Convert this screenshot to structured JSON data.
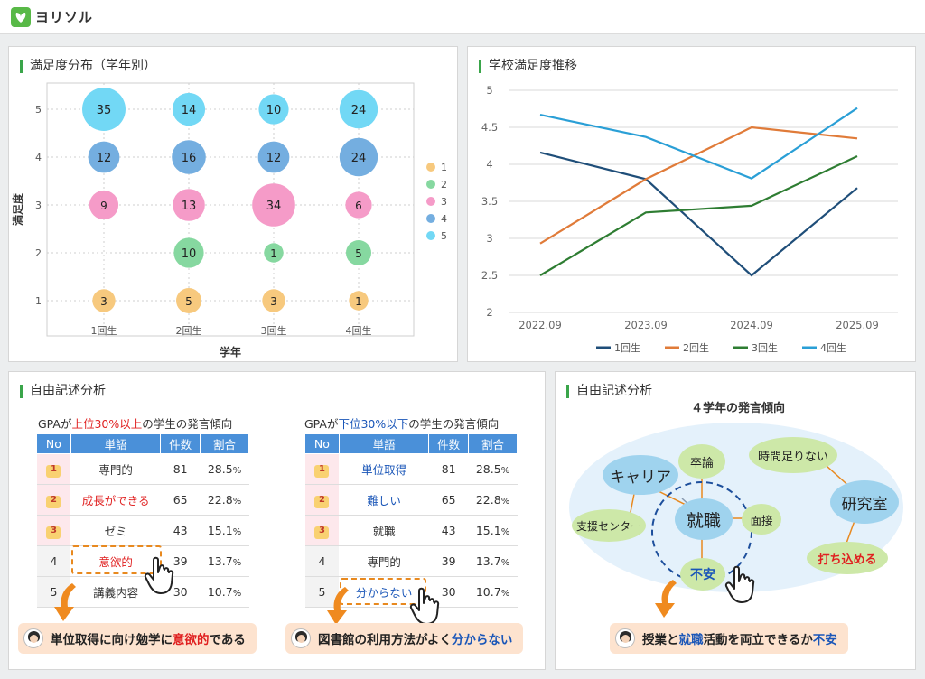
{
  "app": {
    "name": "ヨリソル",
    "accent": "#58b947"
  },
  "bubble_chart": {
    "title": "満足度分布（学年別）",
    "chart_data": {
      "type": "scatter",
      "xlabel": "学年",
      "ylabel": "満足度",
      "categories": [
        "1回生",
        "2回生",
        "3回生",
        "4回生"
      ],
      "yticks": [
        "1",
        "2",
        "3",
        "4",
        "5"
      ],
      "legend": [
        "1",
        "2",
        "3",
        "4",
        "5"
      ],
      "colors": {
        "1": "#f7c97e",
        "2": "#86d8a0",
        "3": "#f59bc8",
        "4": "#74aee0",
        "5": "#72d8f5"
      },
      "points": [
        {
          "x": "1回生",
          "y": 5,
          "value": 35
        },
        {
          "x": "2回生",
          "y": 5,
          "value": 14
        },
        {
          "x": "3回生",
          "y": 5,
          "value": 10
        },
        {
          "x": "4回生",
          "y": 5,
          "value": 24
        },
        {
          "x": "1回生",
          "y": 4,
          "value": 12
        },
        {
          "x": "2回生",
          "y": 4,
          "value": 16
        },
        {
          "x": "3回生",
          "y": 4,
          "value": 12
        },
        {
          "x": "4回生",
          "y": 4,
          "value": 24
        },
        {
          "x": "1回生",
          "y": 3,
          "value": 9
        },
        {
          "x": "2回生",
          "y": 3,
          "value": 13
        },
        {
          "x": "3回生",
          "y": 3,
          "value": 34
        },
        {
          "x": "4回生",
          "y": 3,
          "value": 6
        },
        {
          "x": "2回生",
          "y": 2,
          "value": 10
        },
        {
          "x": "3回生",
          "y": 2,
          "value": 1
        },
        {
          "x": "4回生",
          "y": 2,
          "value": 5
        },
        {
          "x": "1回生",
          "y": 1,
          "value": 3
        },
        {
          "x": "2回生",
          "y": 1,
          "value": 5
        },
        {
          "x": "3回生",
          "y": 1,
          "value": 3
        },
        {
          "x": "4回生",
          "y": 1,
          "value": 1
        }
      ]
    }
  },
  "line_chart": {
    "title": "学校満足度推移",
    "chart_data": {
      "type": "line",
      "x": [
        "2022.09",
        "2023.09",
        "2024.09",
        "2025.09"
      ],
      "yticks": [
        "2",
        "2.5",
        "3",
        "3.5",
        "4",
        "4.5",
        "5"
      ],
      "ylim": [
        2,
        5
      ],
      "grid": true,
      "legend_position": "bottom",
      "series": [
        {
          "name": "1回生",
          "color": "#1f4e79",
          "values": [
            4.16,
            3.8,
            2.5,
            3.68
          ]
        },
        {
          "name": "2回生",
          "color": "#e07b39",
          "values": [
            2.93,
            3.8,
            4.5,
            4.35
          ]
        },
        {
          "name": "3回生",
          "color": "#2e7d32",
          "values": [
            2.5,
            3.35,
            3.44,
            4.11
          ]
        },
        {
          "name": "4回生",
          "color": "#2a9fd6",
          "values": [
            4.67,
            4.37,
            3.81,
            4.76
          ]
        }
      ]
    }
  },
  "free_text": {
    "title": "自由記述分析",
    "headers": [
      "No",
      "単語",
      "件数",
      "割合"
    ],
    "top": {
      "head_pre": "GPAが",
      "head_hl": "上位30%以上",
      "head_post": "の学生の発言傾向",
      "rows": [
        {
          "no": "1",
          "word": "専門的",
          "count": "81",
          "pct": "28.5",
          "unit": "%"
        },
        {
          "no": "2",
          "word": "成長ができる",
          "count": "65",
          "pct": "22.8",
          "unit": "%"
        },
        {
          "no": "3",
          "word": "ゼミ",
          "count": "43",
          "pct": "15.1",
          "unit": "%"
        },
        {
          "no": "4",
          "word": "意欲的",
          "count": "39",
          "pct": "13.7",
          "unit": "%"
        },
        {
          "no": "5",
          "word": "講義内容",
          "count": "30",
          "pct": "10.7",
          "unit": "%"
        }
      ],
      "quote_pre": "単位取得に向け勉学に",
      "quote_hl": "意欲的",
      "quote_post": "である"
    },
    "bottom": {
      "head_pre": "GPAが",
      "head_hl": "下位30%以下",
      "head_post": "の学生の発言傾向",
      "rows": [
        {
          "no": "1",
          "word": "単位取得",
          "count": "81",
          "pct": "28.5",
          "unit": "%"
        },
        {
          "no": "2",
          "word": "難しい",
          "count": "65",
          "pct": "22.8",
          "unit": "%"
        },
        {
          "no": "3",
          "word": "就職",
          "count": "43",
          "pct": "15.1",
          "unit": "%"
        },
        {
          "no": "4",
          "word": "専門的",
          "count": "39",
          "pct": "13.7",
          "unit": "%"
        },
        {
          "no": "5",
          "word": "分からない",
          "count": "30",
          "pct": "10.7",
          "unit": "%"
        }
      ],
      "quote_pre": "図書館の利用方法がよく",
      "quote_hl": "分からない",
      "quote_post": ""
    }
  },
  "network": {
    "title": "自由記述分析",
    "subtitle": "４学年の発言傾向",
    "nodes": {
      "career": "キャリア",
      "sotsuron": "卒論",
      "shien": "支援センター",
      "shushoku": "就職",
      "mensetsu": "面接",
      "fuan": "不安",
      "jikan": "時間足りない",
      "kenkyu": "研究室",
      "uchikomeru": "打ち込める"
    },
    "quote_pre": "授業と",
    "quote_hl1": "就職",
    "quote_mid": "活動を両立できるか",
    "quote_hl2": "不安"
  }
}
